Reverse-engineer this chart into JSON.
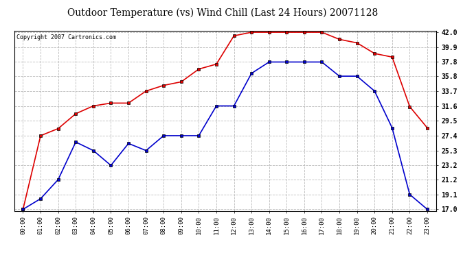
{
  "title": "Outdoor Temperature (vs) Wind Chill (Last 24 Hours) 20071128",
  "copyright": "Copyright 2007 Cartronics.com",
  "hours": [
    "00:00",
    "01:00",
    "02:00",
    "03:00",
    "04:00",
    "05:00",
    "06:00",
    "07:00",
    "08:00",
    "09:00",
    "10:00",
    "11:00",
    "12:00",
    "13:00",
    "14:00",
    "15:00",
    "16:00",
    "17:00",
    "18:00",
    "19:00",
    "20:00",
    "21:00",
    "22:00",
    "23:00"
  ],
  "temp": [
    17.0,
    27.4,
    28.4,
    30.5,
    31.6,
    32.0,
    32.0,
    33.7,
    34.5,
    35.0,
    36.8,
    37.5,
    41.5,
    42.0,
    42.0,
    42.0,
    42.0,
    42.0,
    41.0,
    40.5,
    39.0,
    38.5,
    31.5,
    28.5
  ],
  "windchill": [
    17.0,
    18.5,
    21.2,
    26.5,
    25.3,
    23.2,
    26.3,
    25.3,
    27.4,
    27.4,
    27.4,
    31.6,
    31.6,
    36.2,
    37.8,
    37.8,
    37.8,
    37.8,
    35.8,
    35.8,
    33.7,
    28.5,
    19.1,
    17.0
  ],
  "temp_color": "#dd0000",
  "windchill_color": "#0000cc",
  "bg_color": "#ffffff",
  "grid_color": "#bbbbbb",
  "ymin": 17.0,
  "ymax": 42.0,
  "yticks": [
    17.0,
    19.1,
    21.2,
    23.2,
    25.3,
    27.4,
    29.5,
    31.6,
    33.7,
    35.8,
    37.8,
    39.9,
    42.0
  ]
}
